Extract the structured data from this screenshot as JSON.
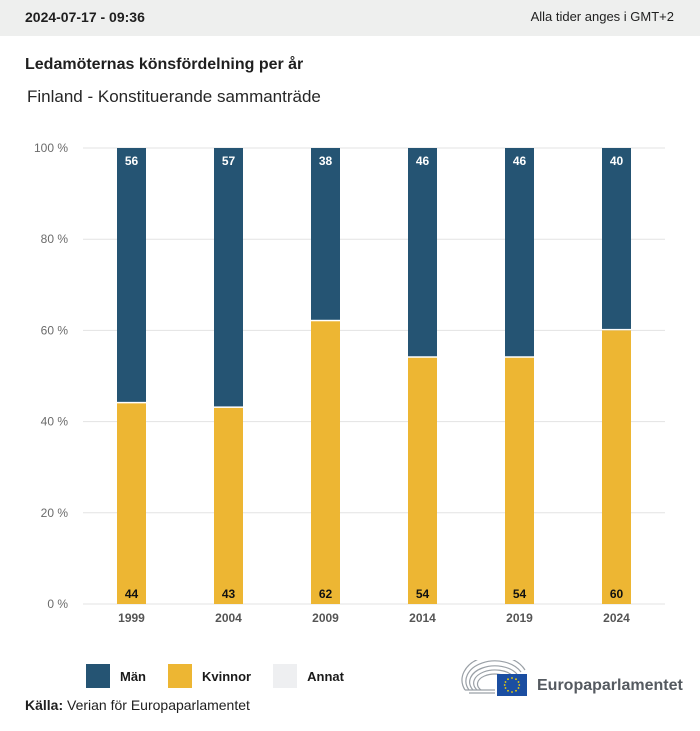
{
  "header": {
    "datetime": "2024-07-17 - 09:36",
    "timezone_note": "Alla tider anges i GMT+2"
  },
  "title": "Ledamöternas könsfördelning per år",
  "subtitle": "Finland - Konstituerande sammanträde",
  "colors": {
    "men": "#255473",
    "women": "#edb633",
    "other": "#eeeff1",
    "grid": "#e3e3e3"
  },
  "chart_data": {
    "type": "bar",
    "stacked": true,
    "title": "Ledamöternas könsfördelning per år",
    "subtitle": "Finland - Konstituerande sammanträde",
    "xlabel": "",
    "ylabel": "",
    "categories": [
      "1999",
      "2004",
      "2009",
      "2014",
      "2019",
      "2024"
    ],
    "series": [
      {
        "name": "Kvinnor",
        "key": "women",
        "values": [
          44,
          43,
          62,
          54,
          54,
          60
        ]
      },
      {
        "name": "Män",
        "key": "men",
        "values": [
          56,
          57,
          38,
          46,
          46,
          40
        ]
      },
      {
        "name": "Annat",
        "key": "other",
        "values": [
          0,
          0,
          0,
          0,
          0,
          0
        ]
      }
    ],
    "ylim": [
      0,
      100
    ],
    "yticks": [
      0,
      20,
      40,
      60,
      80,
      100
    ],
    "ytick_labels": [
      "0 %",
      "20 %",
      "40 %",
      "60 %",
      "80 %",
      "100 %"
    ],
    "grid": true,
    "legend_position": "bottom-left"
  },
  "legend": [
    {
      "label": "Män",
      "key": "men"
    },
    {
      "label": "Kvinnor",
      "key": "women"
    },
    {
      "label": "Annat",
      "key": "other"
    }
  ],
  "source": {
    "label": "Källa:",
    "text": "Verian för Europaparlamentet"
  },
  "logo": {
    "text": "Europaparlamentet"
  }
}
